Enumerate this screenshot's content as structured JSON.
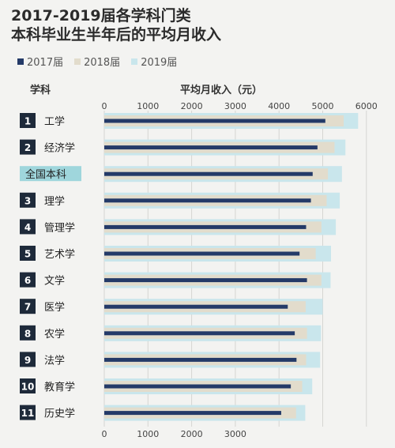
{
  "title_line1": "2017-2019届各学科门类",
  "title_line2": "本科毕业生半年后的平均月收入",
  "col_subject": "学科",
  "col_income": "平均月收入（元）",
  "colors": {
    "y2017": "#243a68",
    "y2018": "#e2dccc",
    "y2019": "#c9e6ec",
    "rank_box": "#1e2a3a",
    "total_box": "#9fd6dc"
  },
  "chart_data": {
    "type": "bar",
    "orientation": "horizontal",
    "xlim": [
      0,
      6000
    ],
    "ticks": [
      "0",
      "1000",
      "2000",
      "3000",
      "4000",
      "5000",
      "6000"
    ],
    "bottom_ticks": [
      "0",
      "1000",
      "2000",
      "3000"
    ],
    "categories": [
      {
        "rank": "1",
        "name": "工学"
      },
      {
        "rank": "2",
        "name": "经济学"
      },
      {
        "rank": "",
        "name": "全国本科"
      },
      {
        "rank": "3",
        "name": "理学"
      },
      {
        "rank": "4",
        "name": "管理学"
      },
      {
        "rank": "5",
        "name": "艺术学"
      },
      {
        "rank": "6",
        "name": "文学"
      },
      {
        "rank": "7",
        "name": "医学"
      },
      {
        "rank": "8",
        "name": "农学"
      },
      {
        "rank": "9",
        "name": "法学"
      },
      {
        "rank": "10",
        "name": "教育学"
      },
      {
        "rank": "11",
        "name": "历史学"
      }
    ],
    "series": [
      {
        "name": "2017届",
        "values": [
          5060,
          4880,
          4770,
          4730,
          4620,
          4470,
          4640,
          4200,
          4360,
          4400,
          4270,
          4050
        ]
      },
      {
        "name": "2018届",
        "values": [
          5480,
          5270,
          5120,
          5090,
          4970,
          4840,
          4970,
          4610,
          4640,
          4620,
          4530,
          4390
        ]
      },
      {
        "name": "2019届",
        "values": [
          5810,
          5520,
          5440,
          5390,
          5300,
          5190,
          5180,
          5000,
          4960,
          4940,
          4760,
          4600
        ]
      }
    ]
  }
}
